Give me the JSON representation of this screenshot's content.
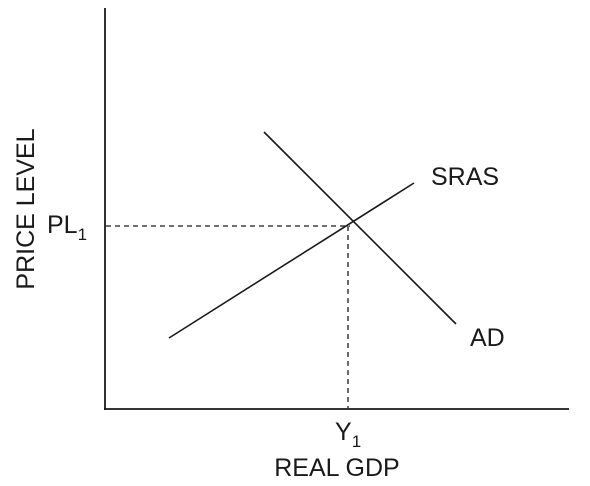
{
  "diagram": {
    "y_axis_label": "PRICE LEVEL",
    "x_axis_label": "REAL GDP",
    "price_marker": {
      "base": "PL",
      "subscript": "1"
    },
    "output_marker": {
      "base": "Y",
      "subscript": "1"
    },
    "curves": {
      "supply": {
        "label": "SRAS"
      },
      "demand": {
        "label": "AD"
      }
    }
  }
}
